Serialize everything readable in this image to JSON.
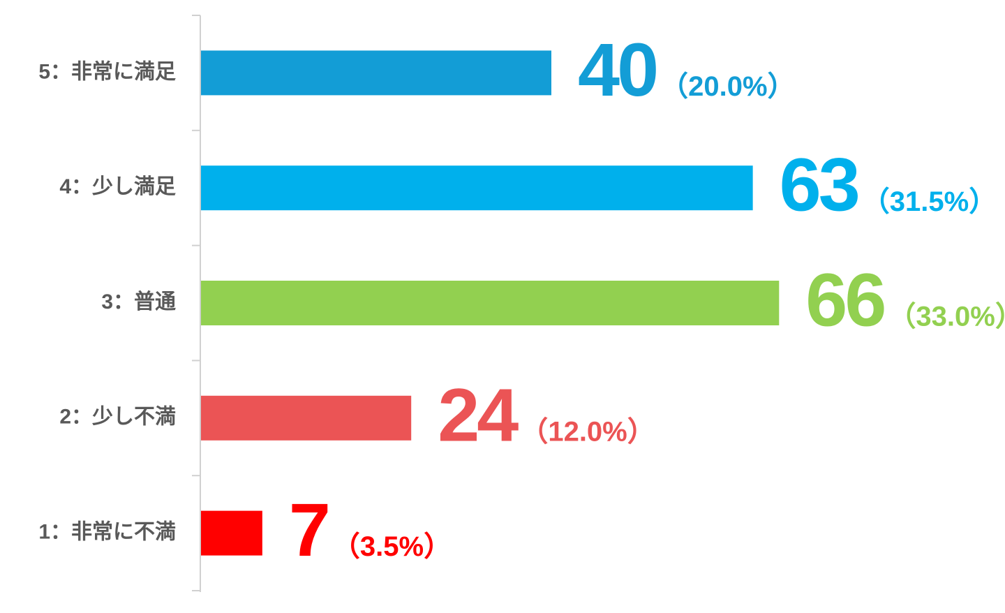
{
  "chart_data": {
    "type": "bar",
    "categories": [
      "5：非常に満足",
      "4：少し満足",
      "3：普通",
      "2：少し不満",
      "1：非常に不満"
    ],
    "values": [
      40,
      63,
      66,
      24,
      7
    ],
    "percent_labels": [
      "（20.0%）",
      "（31.5%）",
      "（33.0%）",
      "（12.0%）",
      "（3.5%）"
    ],
    "colors": [
      "#139dd6",
      "#00b0ec",
      "#92d050",
      "#eb5455",
      "#ff0000"
    ]
  }
}
